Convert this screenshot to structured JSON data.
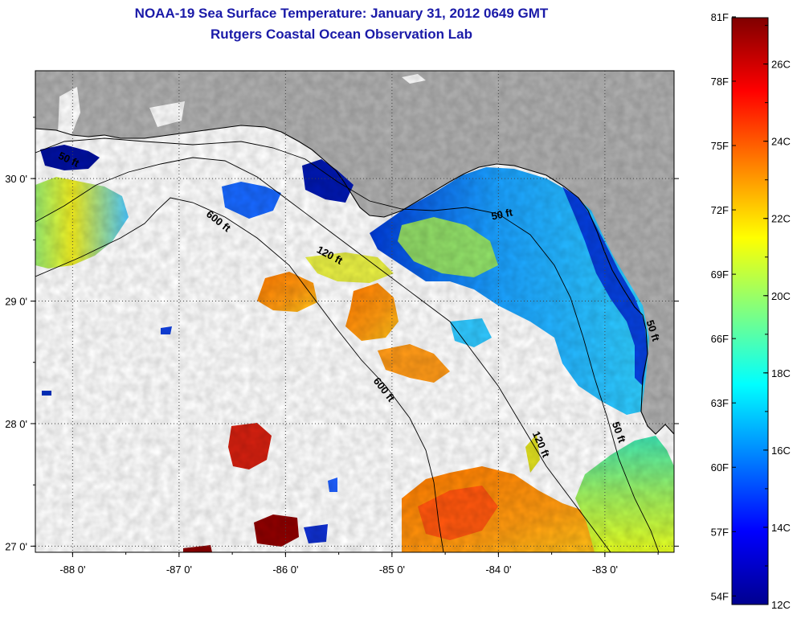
{
  "header": {
    "title": "NOAA-19 Sea Surface Temperature:  January 31, 2012 0649 GMT",
    "subtitle": "Rutgers Coastal Ocean Observation Lab"
  },
  "map": {
    "region": "Northeastern Gulf of Mexico / Florida Big Bend",
    "lon_range": [
      -88.35,
      -82.35
    ],
    "lat_range": [
      26.95,
      30.88
    ],
    "lon_ticks": [
      {
        "value": -88,
        "label": "-88 0'"
      },
      {
        "value": -87,
        "label": "-87 0'"
      },
      {
        "value": -86,
        "label": "-86 0'"
      },
      {
        "value": -85,
        "label": "-85 0'"
      },
      {
        "value": -84,
        "label": "-84 0'"
      },
      {
        "value": -83,
        "label": "-83 0'"
      }
    ],
    "lat_ticks": [
      {
        "value": 30,
        "label": "30 0'"
      },
      {
        "value": 29,
        "label": "29 0'"
      },
      {
        "value": 28,
        "label": "28 0'"
      },
      {
        "value": 27,
        "label": "27 0'"
      }
    ],
    "contour_labels": [
      {
        "text": "50 ft",
        "lon": -88.05,
        "lat": 30.13,
        "angle": 25
      },
      {
        "text": "600 ft",
        "lon": -86.65,
        "lat": 29.63,
        "angle": 38
      },
      {
        "text": "120 ft",
        "lon": -85.6,
        "lat": 29.35,
        "angle": 28
      },
      {
        "text": "50 ft",
        "lon": -83.96,
        "lat": 29.68,
        "angle": -12
      },
      {
        "text": "600 ft",
        "lon": -85.1,
        "lat": 28.26,
        "angle": 52
      },
      {
        "text": "120 ft",
        "lon": -83.63,
        "lat": 27.82,
        "angle": 66
      },
      {
        "text": "50 ft",
        "lon": -82.9,
        "lat": 27.92,
        "angle": 70
      },
      {
        "text": "50 ft",
        "lon": -82.58,
        "lat": 28.75,
        "angle": 72
      }
    ],
    "colors": {
      "land": "#b0b0b0",
      "no_data": "#ffffff",
      "grid": "#444444"
    }
  },
  "colorbar": {
    "fahrenheit": [
      {
        "value": 81,
        "label": "81F"
      },
      {
        "value": 78,
        "label": "78F"
      },
      {
        "value": 75,
        "label": "75F"
      },
      {
        "value": 72,
        "label": "72F"
      },
      {
        "value": 69,
        "label": "69F"
      },
      {
        "value": 66,
        "label": "66F"
      },
      {
        "value": 63,
        "label": "63F"
      },
      {
        "value": 60,
        "label": "60F"
      },
      {
        "value": 57,
        "label": "57F"
      },
      {
        "value": 54,
        "label": "54F"
      }
    ],
    "celsius": [
      {
        "value": 26,
        "label": "26C"
      },
      {
        "value": 24,
        "label": "24C"
      },
      {
        "value": 22,
        "label": "22C"
      },
      {
        "value": 20,
        "label": "20C"
      },
      {
        "value": 18,
        "label": "18C"
      },
      {
        "value": 16,
        "label": "16C"
      },
      {
        "value": 14,
        "label": "14C"
      },
      {
        "value": 12,
        "label": "12C"
      }
    ],
    "range_c": [
      12,
      27.2
    ],
    "stops": [
      "#00008f",
      "#0000ff",
      "#0080ff",
      "#00ffff",
      "#80ff80",
      "#ffff00",
      "#ff8000",
      "#ff0000",
      "#800000"
    ]
  }
}
